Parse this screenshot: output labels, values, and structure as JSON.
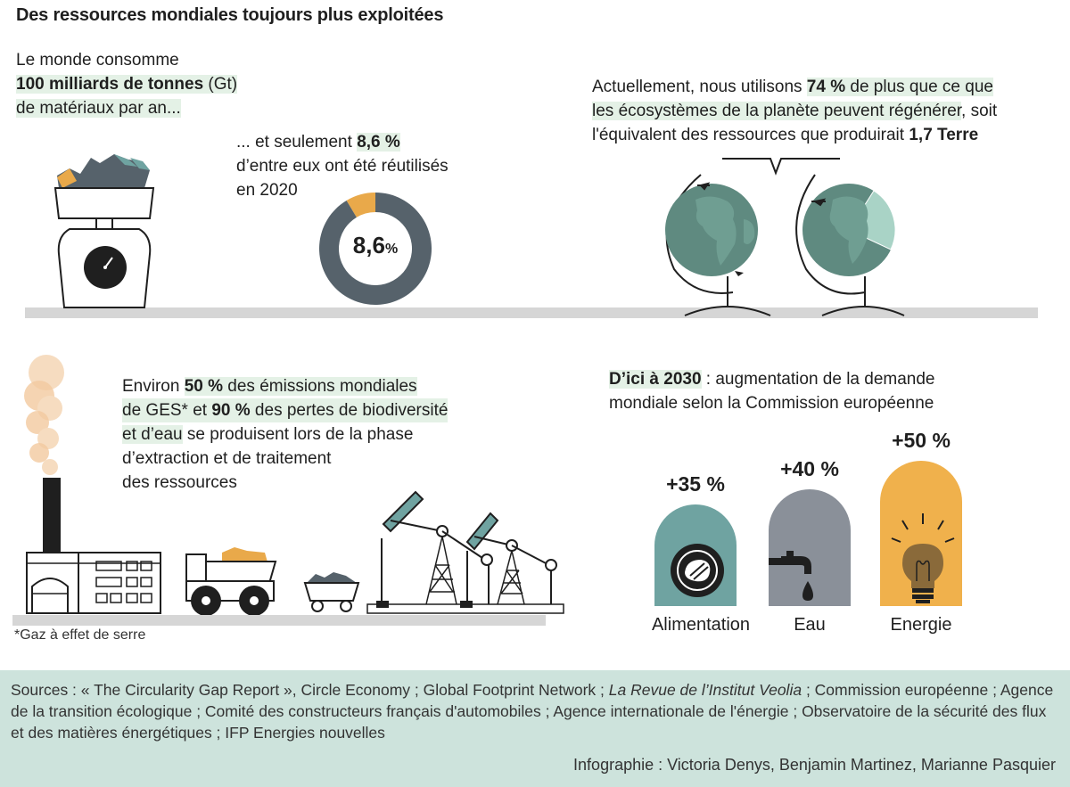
{
  "title": "Des ressources mondiales toujours plus exploitées",
  "block1": {
    "line1": "Le monde consomme",
    "line2_bold": "100 milliards de tonnes",
    "line2_rest": " (Gt)",
    "line3": "de matériaux par an..."
  },
  "block2": {
    "line1_pre": "... et seulement ",
    "line1_bold": "8,6 %",
    "line2": "d’entre eux ont été réutilisés",
    "line3": "en 2020"
  },
  "block3": {
    "line1_pre": "Actuellement, nous utilisons ",
    "line1_bold": "74 %",
    "line1_post": " de plus que ce que",
    "line2": "les écosystèmes de la planète peuvent régénérer",
    "line2_post": ", soit",
    "line3_pre": "l'équivalent des ressources que produirait ",
    "line3_bold": "1,7 Terre"
  },
  "block4": {
    "line1_pre": "Environ ",
    "line1_bold": "50 %",
    "line1_post": " des émissions mondiales",
    "line2_pre": "de GES* et ",
    "line2_bold": "90 %",
    "line2_post": " des pertes de biodiversité",
    "line3_hl": "et d’eau",
    "line3_post": " se produisent lors de la phase",
    "line4": "d’extraction et de traitement",
    "line5": "des ressources"
  },
  "footnote": "*Gaz à effet de serre",
  "block5": {
    "line1_bold": "D’ici à 2030",
    "line1_post": " : augmentation de la demande",
    "line2": "mondiale selon la Commission européenne"
  },
  "sources": {
    "part1": "Sources : « The Circularity Gap Report », Circle Economy ; Global Footprint Network ; ",
    "italic": "La Revue de l’Institut Veolia",
    "part2": " ; Commission européenne ; Agence de la transition écologique ; Comité des constructeurs français d'automobiles ; Agence internationale de l'énergie ; Observatoire de la sécurité des flux et des matières énergétiques ; IFP Energies nouvelles"
  },
  "credit": "Infographie : Victoria Denys, Benjamin Martinez, Marianne Pasquier",
  "colors": {
    "highlight": "#e4f1e6",
    "donut_dark": "#56626b",
    "donut_accent": "#e9a94a",
    "globe": "#5f8a80",
    "food": "#6fa3a1",
    "water": "#8a9099",
    "energy": "#f0b14c",
    "footer": "#cde3dc"
  },
  "chart_data": [
    {
      "type": "pie",
      "title": "",
      "center_label": "8,6",
      "center_unit": "%",
      "slices": [
        {
          "label": "réutilisés",
          "value": 8.6
        },
        {
          "label": "",
          "value": 91.4
        }
      ]
    },
    {
      "type": "bar",
      "title": "",
      "categories": [
        "Alimentation",
        "Eau",
        "Energie"
      ],
      "values": [
        35,
        40,
        50
      ],
      "value_labels": [
        "+35 %",
        "+40 %",
        "+50 %"
      ],
      "series_colors": [
        "#6fa3a1",
        "#8a9099",
        "#f0b14c"
      ]
    }
  ]
}
